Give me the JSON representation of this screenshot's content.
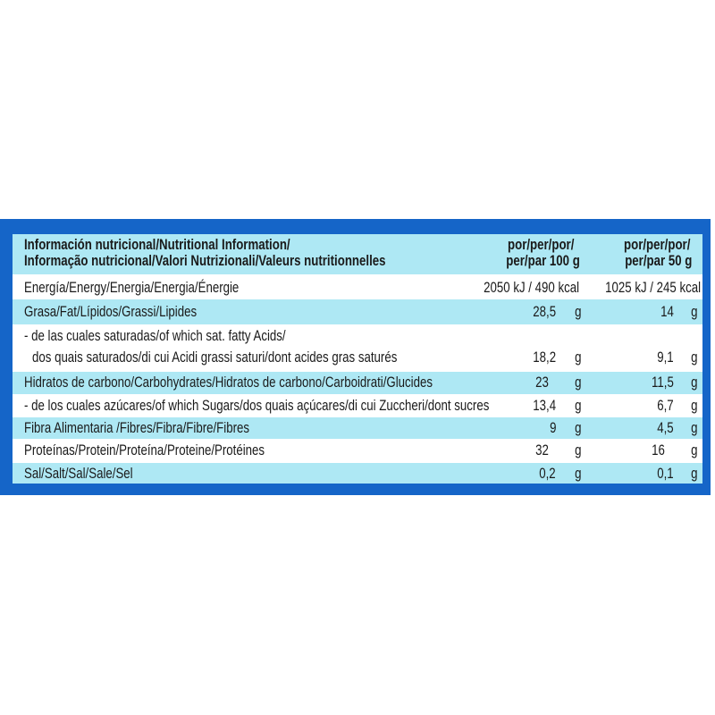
{
  "header": {
    "title_line1": "Información nutricional/Nutritional Information/",
    "title_line2": "Informação nutricional/Valori Nutrizionali/Valeurs nutritionnelles",
    "col1_line1": "por/per/por/",
    "col1_line2": "per/par 100 g",
    "col2_line1": "por/per/por/",
    "col2_line2": "per/par 50 g"
  },
  "rows": [
    {
      "label": "Energía/Energy/Energia/Energia/Énergie",
      "v1": "2050 kJ / 490 kcal",
      "v2": "1025 kJ / 245 kcal"
    },
    {
      "label": "Grasa/Fat/Lípidos/Grassi/Lipides",
      "v1": "28,5",
      "u1": "g",
      "v2": "14",
      "u2": "g"
    },
    {
      "label": " - de las cuales saturadas/of which sat. fatty Acids/",
      "label2": "dos quais saturados/di cui Acidi grassi saturi/dont acides gras saturés",
      "v1": "18,2",
      "u1": "g",
      "v2": "9,1",
      "u2": "g"
    },
    {
      "label": "Hidratos de carbono/Carbohydrates/Hidratos de carbono/Carboidrati/Glucides",
      "v1": "23",
      "u1": "g",
      "v2": "11,5",
      "u2": "g"
    },
    {
      "label": " - de los cuales azúcares/of which Sugars/dos quais açúcares/di cui Zuccheri/dont sucres",
      "v1": "13,4",
      "u1": "g",
      "v2": "6,7",
      "u2": "g"
    },
    {
      "label": "Fibra Alimentaria /Fibres/Fibra/Fibre/Fibres",
      "v1": "9",
      "u1": "g",
      "v2": "4,5",
      "u2": "g"
    },
    {
      "label": "Proteínas/Protein/Proteína/Proteine/Protéines",
      "v1": "32",
      "u1": "g",
      "v2": "16",
      "u2": "g"
    },
    {
      "label": "Sal/Salt/Sal/Sale/Sel",
      "v1": "0,2",
      "u1": "g",
      "v2": "0,1",
      "u2": "g"
    }
  ],
  "colors": {
    "frame": "#1565c8",
    "stripe": "#aee8f4"
  }
}
